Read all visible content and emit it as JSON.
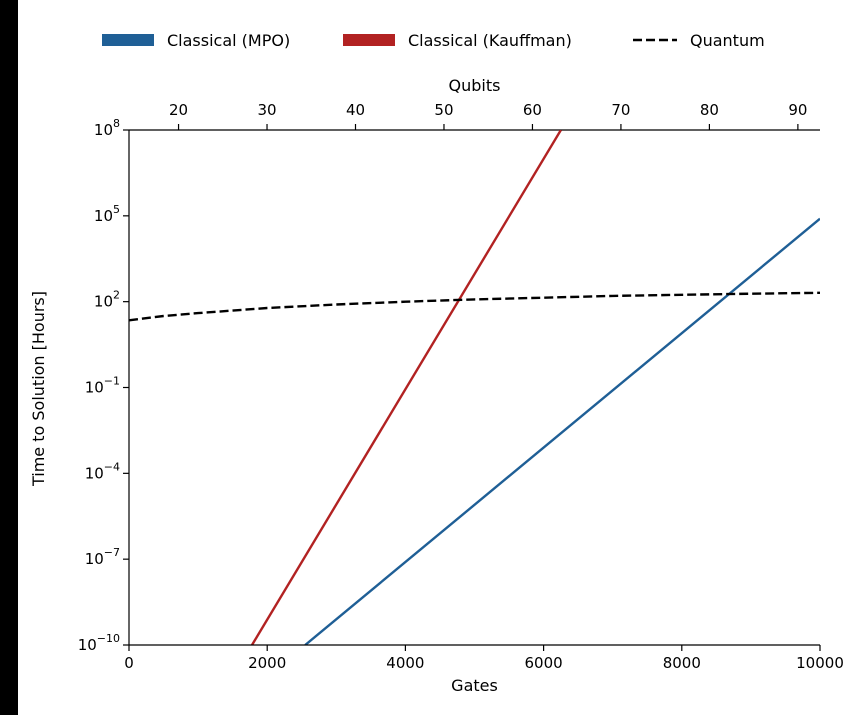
{
  "chart_data": {
    "type": "line",
    "xlabel": "Gates",
    "x2label": "Qubits",
    "ylabel": "Time to Solution [Hours]",
    "xlim": [
      0,
      10000
    ],
    "x2lim": [
      14.4,
      92.5
    ],
    "ylim_log10": [
      -10,
      8
    ],
    "yscale": "log",
    "grid": false,
    "legend_placement": "top-center",
    "xticks": [
      0,
      2000,
      4000,
      6000,
      8000,
      10000
    ],
    "xtick_labels": [
      "0",
      "2000",
      "4000",
      "6000",
      "8000",
      "10000"
    ],
    "x2ticks": [
      20,
      30,
      40,
      50,
      60,
      70,
      80,
      90
    ],
    "x2tick_labels": [
      "20",
      "30",
      "40",
      "50",
      "60",
      "70",
      "80",
      "90"
    ],
    "yticks_log10": [
      -10,
      -7,
      -4,
      -1,
      2,
      5,
      8
    ],
    "ytick_labels": [
      {
        "base": "10",
        "exp": "−10"
      },
      {
        "base": "10",
        "exp": "−7"
      },
      {
        "base": "10",
        "exp": "−4"
      },
      {
        "base": "10",
        "exp": "−1"
      },
      {
        "base": "10",
        "exp": "2"
      },
      {
        "base": "10",
        "exp": "5"
      },
      {
        "base": "10",
        "exp": "8"
      }
    ],
    "series": [
      {
        "name": "Classical (MPO)",
        "style": "solid",
        "color": "#1f5f96",
        "x": [
          2550,
          10000
        ],
        "y_log10": [
          -10,
          4.9
        ]
      },
      {
        "name": "Classical (Kauffman)",
        "style": "solid",
        "color": "#b22222",
        "x": [
          1780,
          6250
        ],
        "y_log10": [
          -10,
          8
        ]
      },
      {
        "name": "Quantum",
        "style": "dashed",
        "color": "#000000",
        "x": [
          0,
          500,
          1000,
          2000,
          3000,
          4000,
          5000,
          6000,
          7000,
          8000,
          9000,
          10000
        ],
        "y_log10": [
          1.35,
          1.5,
          1.6,
          1.78,
          1.9,
          2.0,
          2.08,
          2.14,
          2.2,
          2.24,
          2.28,
          2.31
        ]
      }
    ]
  }
}
